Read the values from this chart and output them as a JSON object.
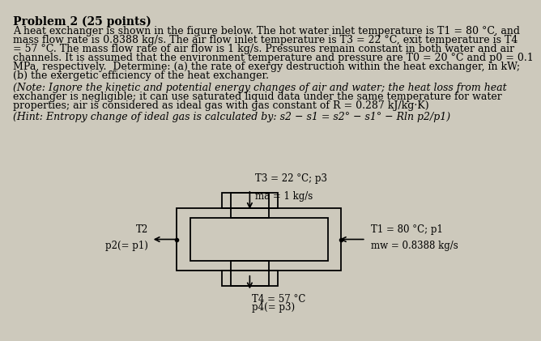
{
  "background_color": "#cdc9bc",
  "title": "Problem 2 (25 points)",
  "line1": "A heat exchanger is shown in the figure below. The hot water inlet temperature is T1 = 80 °C, and",
  "line2": "mass flow rate is 0.8388 kg/s. The air flow inlet temperature is T3 = 22 °C, exit temperature is T4",
  "line3": "= 57 °C. The mass flow rate of air flow is 1 kg/s. Pressures remain constant in both water and air",
  "line4": "channels. It is assumed that the environment temperature and pressure are T0 = 20 °C and p0 = 0.1",
  "line5": "MPa, respectively.  Determine: (a) the rate of exergy destruction within the heat exchanger, in kW;",
  "line6": "(b) the exergetic efficiency of the heat exchanger.",
  "note1": "(Note: Ignore the kinetic and potential energy changes of air and water; the heat loss from heat",
  "note2": "exchanger is negligible; it can use saturated liquid data under the same temperature for water",
  "note3": "properties; air is considered as ideal gas with gas constant of R = 0.287 kJ/kg·K)",
  "hint": "(Hint: Entropy change of ideal gas is calculated by: s2 − s1 = s2° − s1° − Rln p2/p1)",
  "lbl_T3": "T3 = 22 °C; p3",
  "lbl_mdota": "ma = 1 kg/s",
  "lbl_T2": "T2",
  "lbl_p2": "p2(= p1)",
  "lbl_T1": "T1 = 80 °C; p1",
  "lbl_mdotw": "mw = 0.8388 kg/s",
  "lbl_T4": "T4 = 57 °C",
  "lbl_p4": "p4(= p3)",
  "fs_title": 10,
  "fs_body": 9,
  "fs_note": 9,
  "fs_diag": 8.5
}
